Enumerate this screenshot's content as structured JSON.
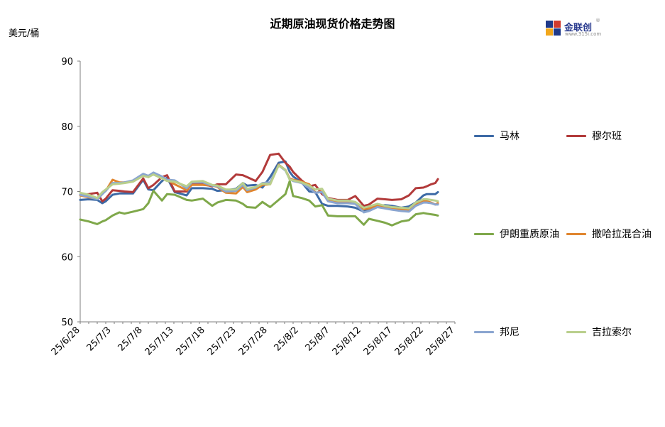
{
  "header": {
    "title": "近期原油现货价格走势图",
    "unit": "美元/桶",
    "logo_text": "金联创",
    "logo_sub": "www.315i.com",
    "logo_mark": "®"
  },
  "chart_data": {
    "type": "line",
    "title": "近期原油现货价格走势图",
    "ylabel": "美元/桶",
    "ylim": [
      50,
      90
    ],
    "yticks": [
      50,
      60,
      70,
      80,
      90
    ],
    "xlim": [
      0,
      44
    ],
    "x_tick_labels": [
      "25/6/28",
      "25/7/3",
      "25/7/8",
      "25/7/13",
      "25/7/18",
      "25/7/23",
      "25/7/28",
      "25/8/2",
      "25/8/7",
      "25/8/12",
      "25/8/17",
      "25/8/22",
      "25/8/27"
    ],
    "grid": false,
    "legend": "right",
    "series": [
      {
        "name": "马林",
        "color": "#3d6aa6",
        "x": [
          0,
          1,
          2,
          2.6,
          3,
          3.8,
          4.6,
          5.2,
          6.2,
          7.4,
          8,
          8.6,
          9.6,
          10.2,
          11.1,
          12.5,
          13.1,
          14.4,
          15.5,
          16.1,
          17.1,
          18.3,
          19.1,
          19.6,
          20.6,
          21.4,
          22.3,
          23.3,
          24.1,
          24.6,
          25,
          26,
          26.9,
          27.6,
          28.4,
          29.1,
          30.2,
          31.4,
          32.3,
          33.3,
          33.9,
          34.9,
          35.8,
          36.6,
          37.7,
          38.6,
          39.4,
          40.3,
          40.7,
          41.2,
          41.7,
          42
        ],
        "y": [
          68.7,
          68.8,
          68.7,
          68.2,
          68.5,
          69.5,
          69.7,
          69.7,
          69.7,
          71.8,
          70.3,
          70.2,
          71.6,
          72.1,
          69.9,
          69.4,
          70.5,
          70.5,
          70.4,
          70.1,
          70.2,
          70.4,
          71.3,
          70.9,
          71.0,
          70.6,
          72.2,
          74.4,
          74.6,
          73.0,
          72.3,
          71.4,
          70.0,
          69.9,
          68.1,
          67.8,
          67.8,
          67.7,
          67.5,
          66.9,
          67.3,
          67.8,
          67.9,
          67.8,
          67.5,
          67.7,
          68.3,
          69.4,
          69.6,
          69.6,
          69.6,
          69.9
        ]
      },
      {
        "name": "穆尔班",
        "color": "#b23a3a",
        "x": [
          0,
          1,
          2,
          2.6,
          3,
          3.8,
          4.6,
          5.2,
          6.2,
          7.4,
          8,
          8.6,
          9.6,
          10.2,
          11.1,
          12.5,
          13.1,
          14.4,
          15.5,
          16.1,
          17.1,
          18.3,
          19.1,
          19.6,
          20.6,
          21.4,
          22.3,
          23.3,
          24.1,
          24.6,
          25,
          26,
          26.9,
          27.6,
          28.4,
          29.1,
          30.2,
          31.4,
          32.3,
          33.3,
          33.9,
          34.9,
          35.8,
          36.6,
          37.7,
          38.6,
          39.4,
          40.3,
          40.7,
          41.2,
          41.7,
          42
        ],
        "y": [
          69.5,
          69.6,
          69.8,
          68.5,
          68.9,
          70.2,
          70.1,
          70.0,
          69.9,
          72.0,
          70.5,
          71.0,
          72.2,
          72.5,
          70.0,
          70.0,
          71.2,
          71.1,
          70.8,
          71.1,
          71.1,
          72.6,
          72.5,
          72.2,
          71.6,
          73.0,
          75.6,
          75.8,
          74.4,
          73.8,
          73.0,
          71.7,
          70.8,
          71.0,
          69.6,
          69.0,
          68.7,
          68.7,
          69.3,
          67.8,
          68.0,
          68.9,
          68.8,
          68.7,
          68.8,
          69.4,
          70.5,
          70.6,
          70.8,
          71.1,
          71.3,
          71.9
        ]
      },
      {
        "name": "伊朗重质原油",
        "color": "#7fa84a",
        "x": [
          0,
          1,
          2,
          2.6,
          3,
          3.8,
          4.6,
          5.2,
          6.2,
          7.4,
          8,
          8.6,
          9.6,
          10.2,
          11.1,
          12.5,
          13.1,
          14.4,
          15.5,
          16.1,
          17.1,
          18.3,
          19.1,
          19.6,
          20.6,
          21.4,
          22.3,
          23.3,
          24.1,
          24.6,
          25,
          26,
          26.9,
          27.6,
          28.4,
          29.1,
          30.2,
          31.4,
          32.3,
          33.3,
          33.9,
          34.9,
          35.8,
          36.6,
          37.7,
          38.6,
          39.4,
          40.3,
          40.7,
          41.2,
          41.7,
          42
        ],
        "y": [
          65.7,
          65.4,
          65.0,
          65.4,
          65.6,
          66.3,
          66.8,
          66.6,
          66.9,
          67.3,
          68.2,
          70.1,
          68.6,
          69.6,
          69.5,
          68.7,
          68.6,
          68.9,
          67.8,
          68.3,
          68.7,
          68.6,
          68.1,
          67.6,
          67.5,
          68.4,
          67.6,
          68.7,
          69.6,
          71.6,
          69.3,
          69.0,
          68.6,
          67.7,
          67.9,
          66.3,
          66.2,
          66.2,
          66.2,
          64.9,
          65.8,
          65.5,
          65.2,
          64.8,
          65.4,
          65.6,
          66.5,
          66.7,
          66.6,
          66.5,
          66.4,
          66.3
        ]
      },
      {
        "name": "撒哈拉混合油",
        "color": "#e0852e",
        "x": [
          0,
          1,
          2,
          2.6,
          3,
          3.8,
          4.6,
          5.2,
          6.2,
          7.4,
          8,
          8.6,
          9.6,
          10.2,
          11.1,
          12.5,
          13.1,
          14.4,
          15.5,
          16.1,
          17.1,
          18.3,
          19.1,
          19.6,
          20.6,
          21.4,
          22.3,
          23.3,
          24.1,
          24.6,
          25,
          26,
          26.9,
          27.6,
          28.4,
          29.1,
          30.2,
          31.4,
          32.3,
          33.3,
          33.9,
          34.9,
          35.8,
          36.6,
          37.7,
          38.6,
          39.4,
          40.3,
          40.7,
          41.2,
          41.7,
          42
        ],
        "y": [
          69.4,
          69.1,
          68.9,
          69.7,
          70.1,
          71.8,
          71.4,
          71.4,
          71.6,
          72.6,
          72.2,
          72.7,
          72.2,
          71.8,
          71.1,
          70.2,
          71.0,
          71.0,
          70.9,
          70.7,
          69.8,
          69.7,
          70.7,
          69.9,
          70.3,
          71.0,
          71.1,
          74.1,
          73.3,
          72.0,
          71.8,
          71.5,
          71.1,
          69.8,
          70.0,
          68.8,
          68.3,
          68.3,
          68.1,
          67.3,
          67.4,
          67.9,
          67.7,
          67.4,
          67.3,
          67.2,
          68.0,
          68.5,
          68.5,
          68.3,
          68.0,
          68.2
        ]
      },
      {
        "name": "邦尼",
        "color": "#8aa5d0",
        "x": [
          0,
          1,
          2,
          2.6,
          3,
          3.8,
          4.6,
          5.2,
          6.2,
          7.4,
          8,
          8.6,
          9.6,
          10.2,
          11.1,
          12.5,
          13.1,
          14.4,
          15.5,
          16.1,
          17.1,
          18.3,
          19.1,
          19.6,
          20.6,
          21.4,
          22.3,
          23.3,
          24.1,
          24.6,
          25,
          26,
          26.9,
          27.6,
          28.4,
          29.1,
          30.2,
          31.4,
          32.3,
          33.3,
          33.9,
          34.9,
          35.8,
          36.6,
          37.7,
          38.6,
          39.4,
          40.3,
          40.7,
          41.2,
          41.7,
          42
        ],
        "y": [
          69.5,
          69.2,
          68.8,
          69.6,
          70.1,
          71.3,
          71.3,
          71.4,
          71.7,
          72.7,
          72.4,
          72.9,
          72.3,
          71.8,
          71.7,
          70.5,
          71.4,
          71.4,
          70.9,
          70.8,
          70.0,
          70.1,
          71.0,
          70.2,
          70.6,
          71.3,
          71.4,
          74.0,
          73.2,
          71.9,
          71.6,
          71.3,
          70.5,
          69.8,
          69.9,
          68.5,
          68.2,
          68.2,
          68.1,
          66.8,
          67.0,
          67.6,
          67.4,
          67.2,
          67.0,
          66.9,
          67.8,
          68.3,
          68.3,
          68.2,
          68.0,
          68.0
        ]
      },
      {
        "name": "吉拉索尔",
        "color": "#b9cf8c",
        "x": [
          0,
          1,
          2,
          2.6,
          3,
          3.8,
          4.6,
          5.2,
          6.2,
          7.4,
          8,
          8.6,
          9.6,
          10.2,
          11.1,
          12.5,
          13.1,
          14.4,
          15.5,
          16.1,
          17.1,
          18.3,
          19.1,
          19.6,
          20.6,
          21.4,
          22.3,
          23.3,
          24.1,
          24.6,
          25,
          26,
          26.9,
          27.6,
          28.4,
          29.1,
          30.2,
          31.4,
          32.3,
          33.3,
          33.9,
          34.9,
          35.8,
          36.6,
          37.7,
          38.6,
          39.4,
          40.3,
          40.7,
          41.2,
          41.7,
          42
        ],
        "y": [
          69.8,
          69.5,
          69.0,
          69.9,
          70.3,
          71.1,
          71.2,
          71.3,
          71.5,
          72.4,
          72.2,
          72.6,
          72.0,
          71.6,
          71.5,
          70.8,
          71.5,
          71.6,
          71.0,
          70.9,
          70.3,
          70.3,
          71.3,
          70.4,
          70.7,
          71.2,
          71.1,
          74.0,
          73.3,
          71.8,
          71.7,
          71.4,
          70.9,
          70.3,
          70.4,
          68.9,
          68.6,
          68.6,
          68.4,
          67.5,
          67.7,
          68.1,
          67.8,
          67.6,
          67.5,
          67.4,
          68.3,
          68.8,
          68.8,
          68.7,
          68.6,
          68.5
        ]
      }
    ]
  }
}
